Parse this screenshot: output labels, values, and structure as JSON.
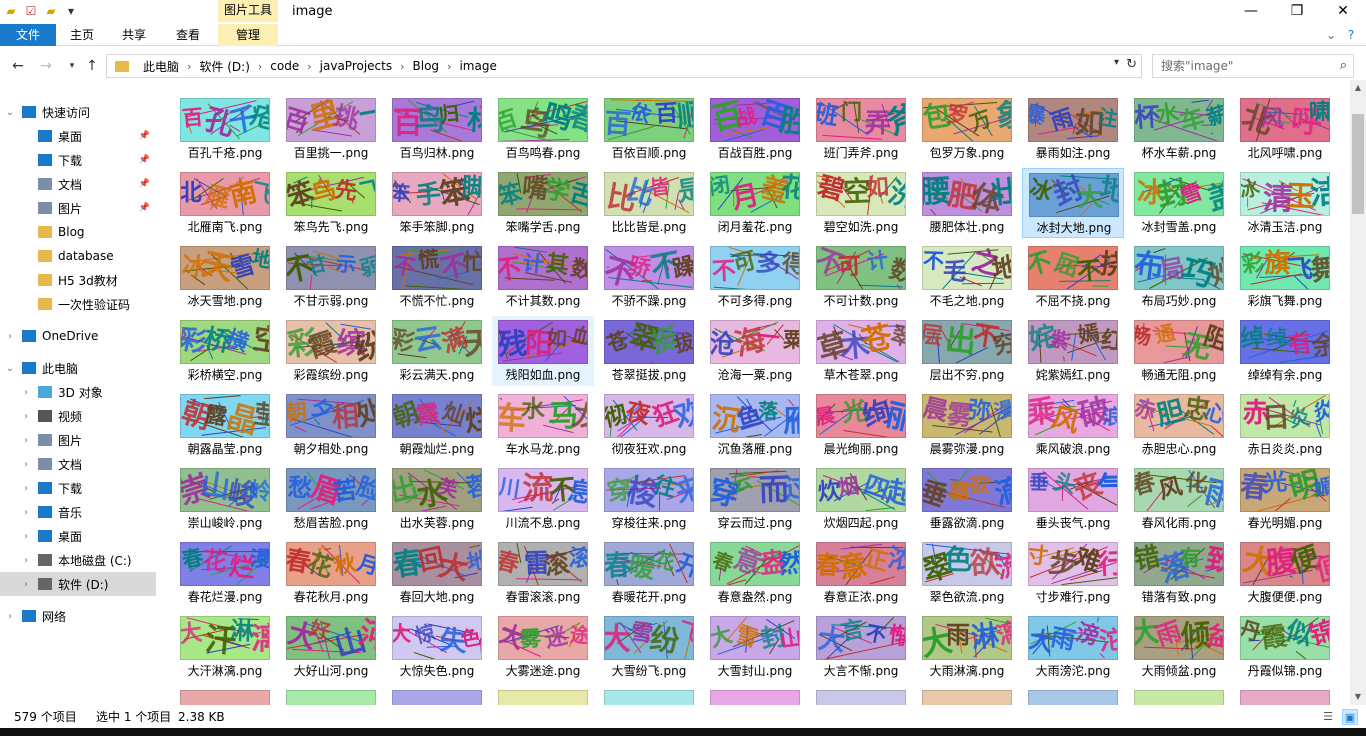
{
  "window": {
    "title": "image",
    "context_group": "图片工具",
    "min_label": "—",
    "max_label": "❐",
    "close_label": "✕"
  },
  "quick_access_toolbar": {
    "icons": [
      "folder-icon",
      "properties-icon",
      "new-folder-icon",
      "customize-dropdown-icon"
    ]
  },
  "ribbon": {
    "tabs": [
      "文件",
      "主页",
      "共享",
      "查看",
      "管理"
    ],
    "collapse_label": "⌄",
    "help_label": "?"
  },
  "address_bar": {
    "crumbs": [
      "此电脑",
      "软件 (D:)",
      "code",
      "javaProjects",
      "Blog",
      "image"
    ],
    "search_placeholder": "搜索\"image\""
  },
  "sidebar": {
    "items": [
      {
        "label": "快速访问",
        "icon": "star-icon",
        "pinned": false
      },
      {
        "label": "桌面",
        "icon": "desktop-icon",
        "pinned": true
      },
      {
        "label": "下载",
        "icon": "download-icon",
        "pinned": true
      },
      {
        "label": "文档",
        "icon": "documents-icon",
        "pinned": true
      },
      {
        "label": "图片",
        "icon": "pictures-icon",
        "pinned": true
      },
      {
        "label": "Blog",
        "icon": "folder-icon",
        "pinned": false
      },
      {
        "label": "database",
        "icon": "folder-icon",
        "pinned": false
      },
      {
        "label": "H5  3d教材",
        "icon": "folder-icon",
        "pinned": false
      },
      {
        "label": "一次性验证码",
        "icon": "folder-icon",
        "pinned": false
      },
      {
        "label": "OneDrive",
        "icon": "cloud-icon",
        "pinned": false
      },
      {
        "label": "此电脑",
        "icon": "computer-icon",
        "pinned": false
      },
      {
        "label": "3D 对象",
        "icon": "3d-objects-icon",
        "pinned": false
      },
      {
        "label": "视频",
        "icon": "videos-icon",
        "pinned": false
      },
      {
        "label": "图片",
        "icon": "pictures-icon",
        "pinned": false
      },
      {
        "label": "文档",
        "icon": "documents-icon",
        "pinned": false
      },
      {
        "label": "下载",
        "icon": "download-icon",
        "pinned": false
      },
      {
        "label": "音乐",
        "icon": "music-icon",
        "pinned": false
      },
      {
        "label": "桌面",
        "icon": "desktop-icon",
        "pinned": false
      },
      {
        "label": "本地磁盘 (C:)",
        "icon": "drive-icon",
        "pinned": false
      },
      {
        "label": "软件 (D:)",
        "icon": "drive-icon",
        "pinned": false,
        "selected": true
      },
      {
        "label": "网络",
        "icon": "network-icon",
        "pinned": false
      }
    ]
  },
  "files": [
    {
      "name": "百孔千疮.png",
      "bg": "#7fe6e2",
      "chars": "百孔千疮"
    },
    {
      "name": "百里挑一.png",
      "bg": "#c8a0d8",
      "chars": "百里挑一"
    },
    {
      "name": "百鸟归林.png",
      "bg": "#a879d8",
      "chars": "百鸟归林"
    },
    {
      "name": "百鸟鸣春.png",
      "bg": "#86e086",
      "chars": "百鸟鸣春"
    },
    {
      "name": "百依百顺.png",
      "bg": "#7ed07e",
      "chars": "百依百顺"
    },
    {
      "name": "百战百胜.png",
      "bg": "#a05fd8",
      "chars": "百战百胜"
    },
    {
      "name": "班门弄斧.png",
      "bg": "#e88aa0",
      "chars": "班门弄斧"
    },
    {
      "name": "包罗万象.png",
      "bg": "#e8a870",
      "chars": "包罗万象"
    },
    {
      "name": "暴雨如注.png",
      "bg": "#b08880",
      "chars": "暴雨如注"
    },
    {
      "name": "杯水车薪.png",
      "bg": "#80b890",
      "chars": "杯水车薪"
    },
    {
      "name": "北风呼啸.png",
      "bg": "#e0708a",
      "chars": "北风呼啸"
    },
    {
      "name": "北雁南飞.png",
      "bg": "#e89aa8",
      "chars": "北雁南飞"
    },
    {
      "name": "笨鸟先飞.png",
      "bg": "#a8e070",
      "chars": "笨鸟先飞"
    },
    {
      "name": "笨手笨脚.png",
      "bg": "#e8a8c0",
      "chars": "笨手笨脚"
    },
    {
      "name": "笨嘴学舌.png",
      "bg": "#90a870",
      "chars": "笨嘴学舌"
    },
    {
      "name": "比比皆是.png",
      "bg": "#d0e0b0",
      "chars": "比比皆是"
    },
    {
      "name": "闭月羞花.png",
      "bg": "#80e080",
      "chars": "闭月羞花"
    },
    {
      "name": "碧空如洗.png",
      "bg": "#d8e8b8",
      "chars": "碧空如洗"
    },
    {
      "name": "腰肥体壮.png",
      "bg": "#c090e0",
      "chars": "腰肥体壮"
    },
    {
      "name": "冰封大地.png",
      "bg": "#6aa0d8",
      "chars": "冰封大地"
    },
    {
      "name": "冰封雪盖.png",
      "bg": "#80e8a0",
      "chars": "冰封雪盖"
    },
    {
      "name": "冰清玉洁.png",
      "bg": "#b8f0e0",
      "chars": "冰清玉洁"
    },
    {
      "name": "冰天雪地.png",
      "bg": "#c8a080",
      "chars": "冰天雪地"
    },
    {
      "name": "不甘示弱.png",
      "bg": "#9090b0",
      "chars": "不甘示弱"
    },
    {
      "name": "不慌不忙.png",
      "bg": "#6870a8",
      "chars": "不慌不忙"
    },
    {
      "name": "不计其数.png",
      "bg": "#b070d0",
      "chars": "不计其数"
    },
    {
      "name": "不骄不躁.png",
      "bg": "#c090e8",
      "chars": "不骄不躁"
    },
    {
      "name": "不可多得.png",
      "bg": "#90d0f0",
      "chars": "不可多得"
    },
    {
      "name": "不可计数.png",
      "bg": "#80c080",
      "chars": "不可计数"
    },
    {
      "name": "不毛之地.png",
      "bg": "#d8e8c0",
      "chars": "不毛之地"
    },
    {
      "name": "不屈不挠.png",
      "bg": "#e88070",
      "chars": "不屈不挠"
    },
    {
      "name": "布局巧妙.png",
      "bg": "#80c8c8",
      "chars": "布局巧妙"
    },
    {
      "name": "彩旗飞舞.png",
      "bg": "#70e8b0",
      "chars": "彩旗飞舞"
    },
    {
      "name": "彩桥横空.png",
      "bg": "#a0d880",
      "chars": "彩桥横空"
    },
    {
      "name": "彩霞缤纷.png",
      "bg": "#e8c0a8",
      "chars": "彩霞缤纷"
    },
    {
      "name": "彩云满天.png",
      "bg": "#90c890",
      "chars": "彩云满天"
    },
    {
      "name": "残阳如血.png",
      "bg": "#a060e0",
      "chars": "残阳如血"
    },
    {
      "name": "苍翠挺拔.png",
      "bg": "#7868d8",
      "chars": "苍翠挺拔"
    },
    {
      "name": "沧海一粟.png",
      "bg": "#e8b8e0",
      "chars": "沧海一粟"
    },
    {
      "name": "草木苍翠.png",
      "bg": "#e0b0e8",
      "chars": "草木苍翠"
    },
    {
      "name": "层出不穷.png",
      "bg": "#88a8b0",
      "chars": "层出不穷"
    },
    {
      "name": "姹紫嫣红.png",
      "bg": "#c098c0",
      "chars": "姹紫嫣红"
    },
    {
      "name": "畅通无阻.png",
      "bg": "#e89898",
      "chars": "畅通无阻"
    },
    {
      "name": "绰绰有余.png",
      "bg": "#6870e8",
      "chars": "绰绰有余"
    },
    {
      "name": "朝露晶莹.png",
      "bg": "#80d8f0",
      "chars": "朝露晶莹"
    },
    {
      "name": "朝夕相处.png",
      "bg": "#8090c8",
      "chars": "朝夕相处"
    },
    {
      "name": "朝霞灿烂.png",
      "bg": "#7880d0",
      "chars": "朝霞灿烂"
    },
    {
      "name": "车水马龙.png",
      "bg": "#f0b0d8",
      "chars": "车水马龙"
    },
    {
      "name": "彻夜狂欢.png",
      "bg": "#d8b8e8",
      "chars": "彻夜狂欢"
    },
    {
      "name": "沉鱼落雁.png",
      "bg": "#a8b8f0",
      "chars": "沉鱼落雁"
    },
    {
      "name": "晨光绚丽.png",
      "bg": "#e88898",
      "chars": "晨光绚丽"
    },
    {
      "name": "晨雾弥漫.png",
      "bg": "#c8b870",
      "chars": "晨雾弥漫"
    },
    {
      "name": "乘风破浪.png",
      "bg": "#e8a8e0",
      "chars": "乘风破浪"
    },
    {
      "name": "赤胆忠心.png",
      "bg": "#e8b8a0",
      "chars": "赤胆忠心"
    },
    {
      "name": "赤日炎炎.png",
      "bg": "#c0e8a8",
      "chars": "赤日炎炎"
    },
    {
      "name": "崇山峻岭.png",
      "bg": "#90c090",
      "chars": "崇山峻岭"
    },
    {
      "name": "愁眉苦脸.png",
      "bg": "#7898c0",
      "chars": "愁眉苦脸"
    },
    {
      "name": "出水芙蓉.png",
      "bg": "#a0a080",
      "chars": "出水芙蓉"
    },
    {
      "name": "川流不息.png",
      "bg": "#d8b8f0",
      "chars": "川流不息"
    },
    {
      "name": "穿梭往来.png",
      "bg": "#a8a8e8",
      "chars": "穿梭往来"
    },
    {
      "name": "穿云而过.png",
      "bg": "#a0a0b0",
      "chars": "穿云而过"
    },
    {
      "name": "炊烟四起.png",
      "bg": "#b0d8a0",
      "chars": "炊烟四起"
    },
    {
      "name": "垂露欲滴.png",
      "bg": "#8078d8",
      "chars": "垂露欲滴"
    },
    {
      "name": "垂头丧气.png",
      "bg": "#e0a8e0",
      "chars": "垂头丧气"
    },
    {
      "name": "春风化雨.png",
      "bg": "#a8d8b0",
      "chars": "春风化雨"
    },
    {
      "name": "春光明媚.png",
      "bg": "#c8a878",
      "chars": "春光明媚"
    },
    {
      "name": "春花烂漫.png",
      "bg": "#8080e8",
      "chars": "春花烂漫"
    },
    {
      "name": "春花秋月.png",
      "bg": "#e8a088",
      "chars": "春花秋月"
    },
    {
      "name": "春回大地.png",
      "bg": "#a890a0",
      "chars": "春回大地"
    },
    {
      "name": "春雷滚滚.png",
      "bg": "#b0b0b0",
      "chars": "春雷滚滚"
    },
    {
      "name": "春暖花开.png",
      "bg": "#a0a8d8",
      "chars": "春暖花开"
    },
    {
      "name": "春意盎然.png",
      "bg": "#88d898",
      "chars": "春意盎然"
    },
    {
      "name": "春意正浓.png",
      "bg": "#d88098",
      "chars": "春意正浓"
    },
    {
      "name": "翠色欲流.png",
      "bg": "#c8c8e8",
      "chars": "翠色欲流"
    },
    {
      "name": "寸步难行.png",
      "bg": "#e0c0e8",
      "chars": "寸步难行"
    },
    {
      "name": "错落有致.png",
      "bg": "#90a890",
      "chars": "错落有致"
    },
    {
      "name": "大腹便便.png",
      "bg": "#d88888",
      "chars": "大腹便便"
    },
    {
      "name": "大汗淋漓.png",
      "bg": "#a8e888",
      "chars": "大汗淋漓"
    },
    {
      "name": "大好山河.png",
      "bg": "#80c080",
      "chars": "大好山河"
    },
    {
      "name": "大惊失色.png",
      "bg": "#d0c8f0",
      "chars": "大惊失色"
    },
    {
      "name": "大雾迷途.png",
      "bg": "#e8a8a8",
      "chars": "大雾迷途"
    },
    {
      "name": "大雪纷飞.png",
      "bg": "#80b8d8",
      "chars": "大雪纷飞"
    },
    {
      "name": "大雪封山.png",
      "bg": "#c8a8e8",
      "chars": "大雪封山"
    },
    {
      "name": "大言不惭.png",
      "bg": "#b8a0d8",
      "chars": "大言不惭"
    },
    {
      "name": "大雨淋漓.png",
      "bg": "#b0c888",
      "chars": "大雨淋漓"
    },
    {
      "name": "大雨滂沱.png",
      "bg": "#80c8e8",
      "chars": "大雨滂沱"
    },
    {
      "name": "大雨倾盆.png",
      "bg": "#a8a080",
      "chars": "大雨倾盆"
    },
    {
      "name": "丹霞似锦.png",
      "bg": "#98e0a8",
      "chars": "丹霞似锦"
    }
  ],
  "selected_file": "冰封大地.png",
  "hovered_file": "残阳如血.png",
  "status": {
    "count": "579 个项目",
    "selection": "选中 1 个项目",
    "size": "2.38 KB"
  },
  "colors": {
    "accent": "#1979ca",
    "context_tab": "#fcefb4",
    "selection_bg": "#cce8ff",
    "hover_bg": "#e5f3ff"
  }
}
